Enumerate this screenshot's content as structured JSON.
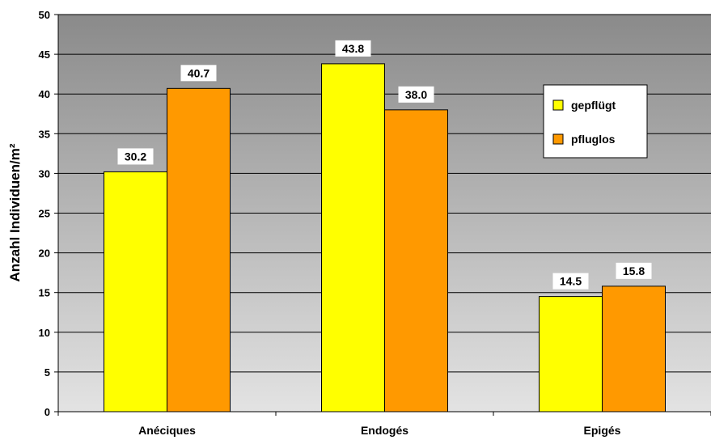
{
  "chart_data": {
    "type": "bar",
    "title": "",
    "xlabel": "",
    "ylabel": "Anzahl Individuen/m²",
    "ylim": [
      0,
      50
    ],
    "yticks": [
      0,
      5,
      10,
      15,
      20,
      25,
      30,
      35,
      40,
      45,
      50
    ],
    "categories": [
      "Anéciques",
      "Endogés",
      "Epigés"
    ],
    "series": [
      {
        "name": "gepflügt",
        "values": [
          30.2,
          43.8,
          14.5
        ],
        "labels": [
          "30.2",
          "43.8",
          "14.5"
        ],
        "color": "#ffff00"
      },
      {
        "name": "pfluglos",
        "values": [
          40.7,
          38.0,
          15.8
        ],
        "labels": [
          "40.7",
          "38.0",
          "15.8"
        ],
        "color": "#ff9900"
      }
    ],
    "grid": true,
    "legend_position": "top-right",
    "background": "gradient gray to light gray"
  }
}
